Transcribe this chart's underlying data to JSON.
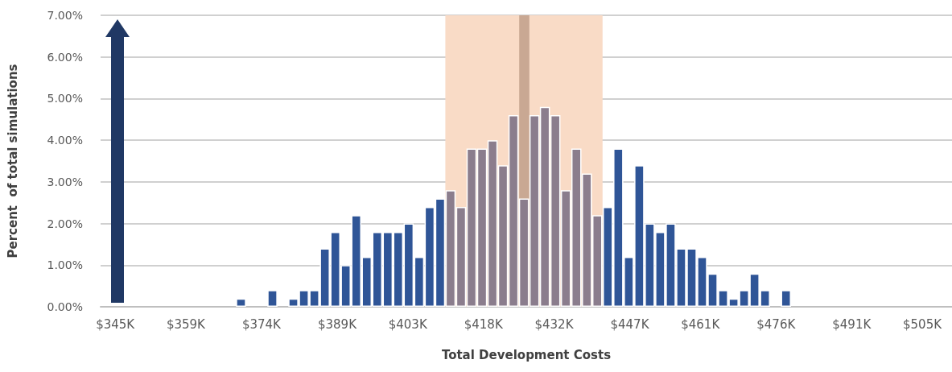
{
  "chart_data": {
    "type": "bar",
    "xlabel": "Total Development Costs",
    "ylabel": "Percent  of total simulations",
    "x": [
      369.94,
      376.17,
      380.32,
      382.4,
      384.48,
      386.56,
      388.64,
      390.71,
      392.79,
      394.87,
      396.95,
      399.03,
      401.1,
      403.18,
      405.26,
      407.34,
      409.42,
      411.49,
      413.57,
      415.65,
      417.73,
      419.81,
      421.88,
      423.96,
      426.04,
      428.12,
      430.19,
      432.27,
      434.35,
      436.43,
      438.51,
      440.58,
      442.66,
      444.74,
      446.82,
      448.9,
      450.97,
      453.05,
      455.13,
      457.21,
      459.29,
      461.36,
      463.44,
      465.52,
      467.6,
      469.68,
      471.75,
      473.83,
      477.99
    ],
    "values": [
      0.2,
      0.4,
      0.2,
      0.4,
      0.4,
      1.4,
      1.8,
      1.0,
      2.2,
      1.2,
      1.8,
      1.8,
      1.8,
      2.0,
      1.2,
      2.4,
      2.6,
      2.8,
      2.4,
      3.8,
      3.8,
      4.0,
      3.4,
      4.6,
      2.6,
      4.6,
      4.8,
      4.6,
      2.8,
      3.8,
      3.2,
      2.2,
      2.4,
      3.8,
      1.2,
      3.4,
      2.0,
      1.8,
      2.0,
      1.4,
      1.4,
      1.2,
      0.8,
      0.4,
      0.2,
      0.4,
      0.8,
      0.4,
      0.4
    ],
    "colors": [
      "#2f5597",
      "#2f5597",
      "#2f5597",
      "#2f5597",
      "#2f5597",
      "#2f5597",
      "#2f5597",
      "#2f5597",
      "#2f5597",
      "#2f5597",
      "#2f5597",
      "#2f5597",
      "#2f5597",
      "#2f5597",
      "#2f5597",
      "#2f5597",
      "#2f5597",
      "#8b7d8d",
      "#8b7d8d",
      "#8b7d8d",
      "#8b7d8d",
      "#8b7d8d",
      "#8b7d8d",
      "#8b7d8d",
      "#8b7d8d",
      "#8b7d8d",
      "#8b7d8d",
      "#8b7d8d",
      "#8b7d8d",
      "#8b7d8d",
      "#8b7d8d",
      "#8b7d8d",
      "#2f5597",
      "#2f5597",
      "#2f5597",
      "#2f5597",
      "#2f5597",
      "#2f5597",
      "#2f5597",
      "#2f5597",
      "#2f5597",
      "#2f5597",
      "#2f5597",
      "#2f5597",
      "#2f5597",
      "#2f5597",
      "#2f5597",
      "#2f5597",
      "#2f5597"
    ],
    "xlim": [
      342.1,
      510.9
    ],
    "xticks": [
      {
        "value": 345,
        "label": "$345K"
      },
      {
        "value": 359,
        "label": "$359K"
      },
      {
        "value": 374,
        "label": "$374K"
      },
      {
        "value": 389,
        "label": "$389K"
      },
      {
        "value": 403,
        "label": "$403K"
      },
      {
        "value": 418,
        "label": "$418K"
      },
      {
        "value": 432,
        "label": "$432K"
      },
      {
        "value": 447,
        "label": "$447K"
      },
      {
        "value": 461,
        "label": "$461K"
      },
      {
        "value": 476,
        "label": "$476K"
      },
      {
        "value": 491,
        "label": "$491K"
      },
      {
        "value": 505,
        "label": "$505K"
      }
    ],
    "ylim": [
      0,
      7
    ],
    "yticks": [
      {
        "value": 0,
        "label": "0.00%"
      },
      {
        "value": 1,
        "label": "1.00%"
      },
      {
        "value": 2,
        "label": "2.00%"
      },
      {
        "value": 3,
        "label": "3.00%"
      },
      {
        "value": 4,
        "label": "4.00%"
      },
      {
        "value": 5,
        "label": "5.00%"
      },
      {
        "value": 6,
        "label": "6.00%"
      },
      {
        "value": 7,
        "label": "7.00%"
      }
    ],
    "grid": "y",
    "bands": [
      {
        "axis": "x",
        "from": 410.45,
        "to": 441.62,
        "color": "#f9dbc6"
      }
    ],
    "ref_lines": [
      {
        "axis": "x",
        "value": 426.04,
        "color": "#c9a893"
      }
    ]
  }
}
